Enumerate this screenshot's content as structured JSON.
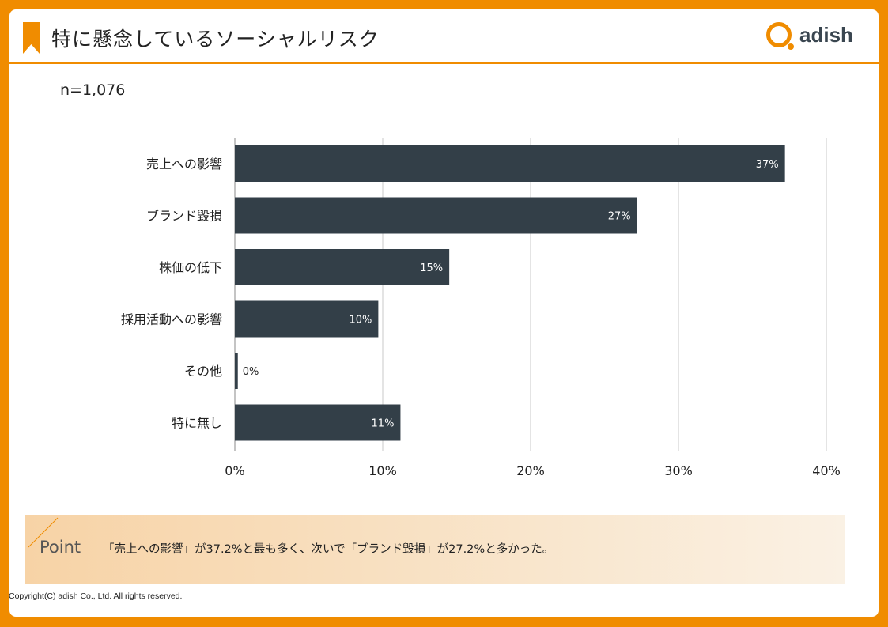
{
  "header": {
    "title": "特に懸念しているソーシャルリスク",
    "logo": "adish"
  },
  "sample": "n=1,076",
  "chart_data": {
    "type": "bar",
    "orientation": "horizontal",
    "categories": [
      "売上への影響",
      "ブランド毀損",
      "株価の低下",
      "採用活動への影響",
      "その他",
      "特に無し"
    ],
    "values": [
      37.2,
      27.2,
      14.5,
      9.7,
      0.2,
      11.2
    ],
    "data_labels": [
      "37%",
      "27%",
      "15%",
      "10%",
      "0%",
      "11%"
    ],
    "xlim": [
      0,
      40
    ],
    "x_ticks": [
      "0%",
      "10%",
      "20%",
      "30%",
      "40%"
    ],
    "grid": true,
    "bar_color": "#333f48"
  },
  "point": {
    "label": "Point",
    "text": "「売上への影響」が37.2%と最も多く、次いで「ブランド毀損」が27.2%と多かった。"
  },
  "footer": {
    "copyright": "Copyright(C) adish Co., Ltd.  All rights reserved."
  },
  "colors": {
    "accent": "#f08c00"
  }
}
